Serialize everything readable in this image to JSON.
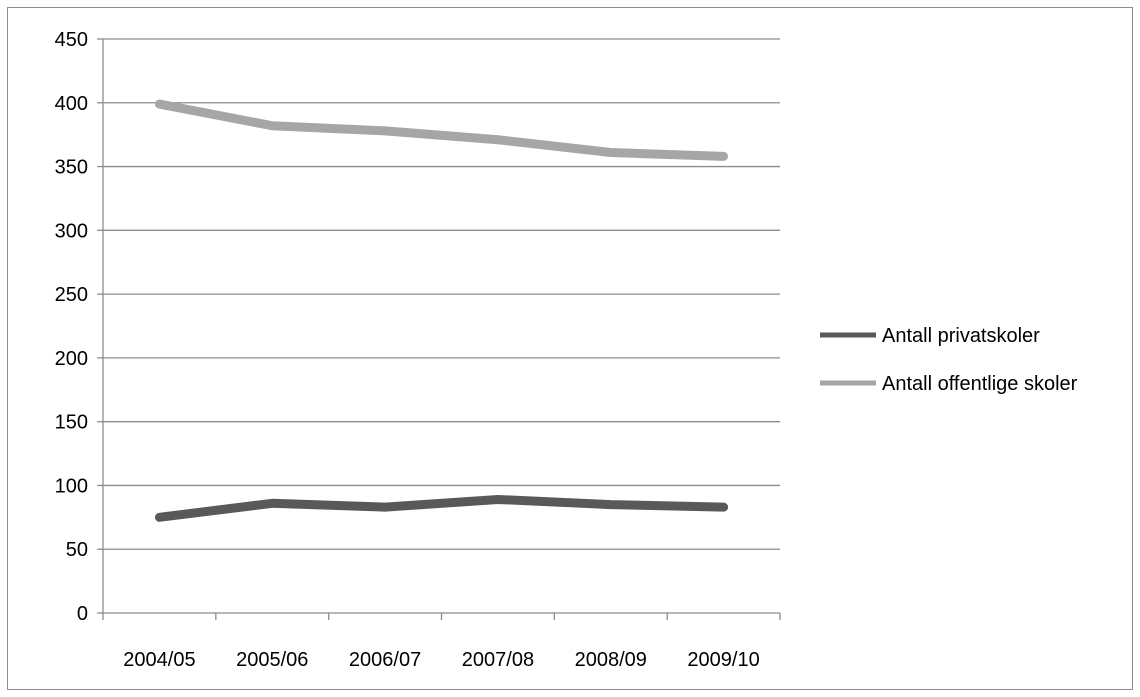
{
  "chart_data": {
    "type": "line",
    "title": "",
    "xlabel": "",
    "ylabel": "",
    "categories": [
      "2004/05",
      "2005/06",
      "2006/07",
      "2007/08",
      "2008/09",
      "2009/10"
    ],
    "ylim": [
      0,
      450
    ],
    "y_ticks": [
      0,
      50,
      100,
      150,
      200,
      250,
      300,
      350,
      400,
      450
    ],
    "grid": "horizontal",
    "legend_position": "right",
    "series": [
      {
        "name": "Antall privatskoler",
        "values": [
          75,
          86,
          83,
          89,
          85,
          83
        ],
        "color": "#595959"
      },
      {
        "name": "Antall offentlige skoler",
        "values": [
          399,
          382,
          378,
          371,
          361,
          358
        ],
        "color": "#a6a6a6"
      }
    ]
  }
}
